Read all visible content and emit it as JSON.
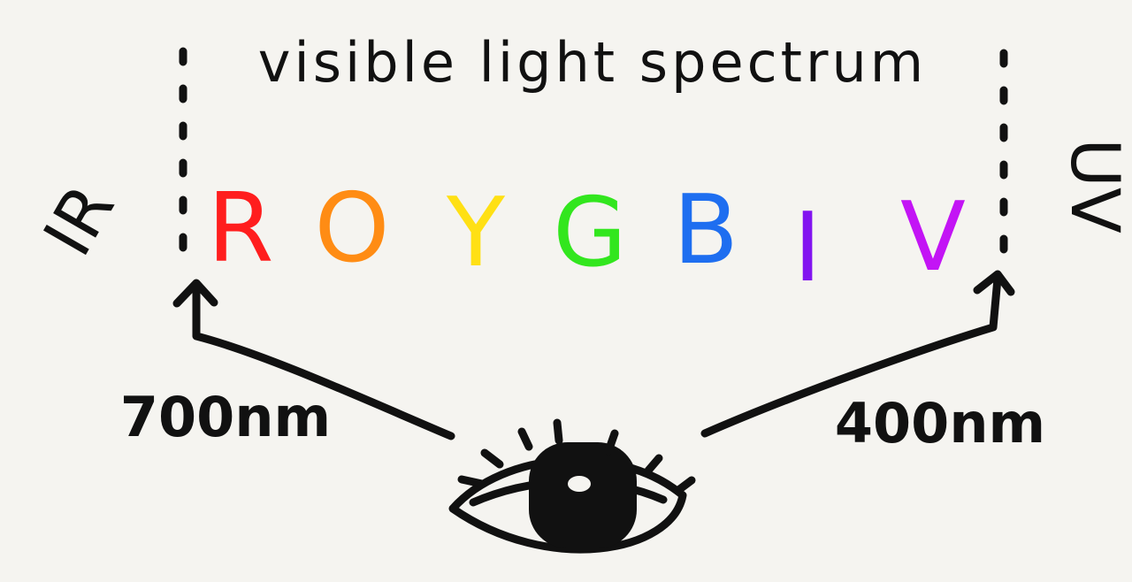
{
  "title": "visible light spectrum",
  "bands": [
    {
      "letter": "R",
      "color": "#ff1e1e"
    },
    {
      "letter": "O",
      "color": "#ff8c14"
    },
    {
      "letter": "Y",
      "color": "#ffe014"
    },
    {
      "letter": "G",
      "color": "#32e61e"
    },
    {
      "letter": "B",
      "color": "#1e6ef0"
    },
    {
      "letter": "I",
      "color": "#8214f0"
    },
    {
      "letter": "V",
      "color": "#c314f5"
    }
  ],
  "left_label": "IR",
  "right_label": "UV",
  "left_wavelength": "700nm",
  "right_wavelength": "400nm",
  "icons": {
    "observer": "eye-icon",
    "left_arrow": "arrow-up-icon",
    "right_arrow": "arrow-up-icon"
  }
}
